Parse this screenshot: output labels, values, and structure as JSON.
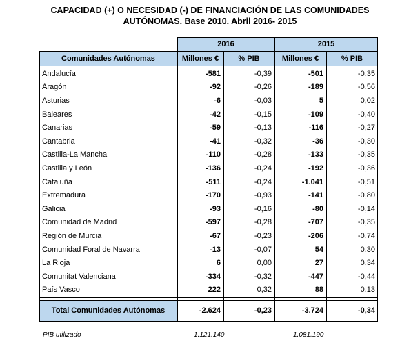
{
  "title_line1": "CAPACIDAD (+) O NECESIDAD (-) DE FINANCIACIÓN DE LAS COMUNIDADES",
  "title_line2": "AUTÓNOMAS. Base 2010. Abril 2016- 2015",
  "years": [
    "2016",
    "2015"
  ],
  "headers": {
    "region": "Comunidades Autónomas",
    "millones_2016": "Millones €",
    "pib_2016": "% PIB",
    "millones_2015": "Millones €",
    "pib_2015": "% PIB"
  },
  "rows": [
    {
      "name": "Andalucía",
      "m2016": "-581",
      "p2016": "-0,39",
      "m2015": "-501",
      "p2015": "-0,35"
    },
    {
      "name": "Aragón",
      "m2016": "-92",
      "p2016": "-0,26",
      "m2015": "-189",
      "p2015": "-0,56"
    },
    {
      "name": "Asturias",
      "m2016": "-6",
      "p2016": "-0,03",
      "m2015": "5",
      "p2015": "0,02"
    },
    {
      "name": "Baleares",
      "m2016": "-42",
      "p2016": "-0,15",
      "m2015": "-109",
      "p2015": "-0,40"
    },
    {
      "name": "Canarias",
      "m2016": "-59",
      "p2016": "-0,13",
      "m2015": "-116",
      "p2015": "-0,27"
    },
    {
      "name": "Cantabria",
      "m2016": "-41",
      "p2016": "-0,32",
      "m2015": "-36",
      "p2015": "-0,30"
    },
    {
      "name": "Castilla-La Mancha",
      "m2016": "-110",
      "p2016": "-0,28",
      "m2015": "-133",
      "p2015": "-0,35"
    },
    {
      "name": "Castilla y León",
      "m2016": "-136",
      "p2016": "-0,24",
      "m2015": "-192",
      "p2015": "-0,36"
    },
    {
      "name": "Cataluña",
      "m2016": "-511",
      "p2016": "-0,24",
      "m2015": "-1.041",
      "p2015": "-0,51"
    },
    {
      "name": "Extremadura",
      "m2016": "-170",
      "p2016": "-0,93",
      "m2015": "-141",
      "p2015": "-0,80"
    },
    {
      "name": "Galicia",
      "m2016": "-93",
      "p2016": "-0,16",
      "m2015": "-80",
      "p2015": "-0,14"
    },
    {
      "name": "Comunidad de Madrid",
      "m2016": "-597",
      "p2016": "-0,28",
      "m2015": "-707",
      "p2015": "-0,35"
    },
    {
      "name": "Región de Murcia",
      "m2016": "-67",
      "p2016": "-0,23",
      "m2015": "-206",
      "p2015": "-0,74"
    },
    {
      "name": "Comunidad Foral de Navarra",
      "m2016": "-13",
      "p2016": "-0,07",
      "m2015": "54",
      "p2015": "0,30"
    },
    {
      "name": "La Rioja",
      "m2016": "6",
      "p2016": "0,00",
      "m2015": "27",
      "p2015": "0,34"
    },
    {
      "name": "Comunitat Valenciana",
      "m2016": "-334",
      "p2016": "-0,32",
      "m2015": "-447",
      "p2015": "-0,44"
    },
    {
      "name": "País Vasco",
      "m2016": "222",
      "p2016": "0,32",
      "m2015": "88",
      "p2015": "0,13"
    }
  ],
  "total": {
    "name": "Total Comunidades Autónomas",
    "m2016": "-2.624",
    "p2016": "-0,23",
    "m2015": "-3.724",
    "p2015": "-0,34"
  },
  "footer": {
    "label": "PIB utilizado",
    "pib_2016": "1.121.140",
    "pib_2015": "1.081.190"
  },
  "colors": {
    "header_fill": "#bdd7ee",
    "border": "#000000"
  }
}
